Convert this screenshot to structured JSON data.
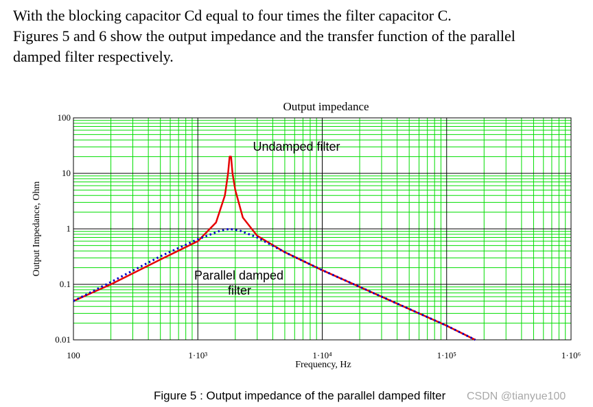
{
  "paragraphs": [
    {
      "lines": [
        "With the blocking capacitor Cd equal to four times the filter capacitor C."
      ]
    },
    {
      "lines": [
        "Figures 5 and 6 show the output impedance and the transfer function of the parallel",
        "damped filter respectively."
      ]
    }
  ],
  "chart_data": {
    "type": "line",
    "title": "Output impedance",
    "x_label": "Frequency, Hz",
    "y_label": "Output Impedance, Ohm",
    "xscale": "log",
    "yscale": "log",
    "grid": true,
    "minor_grid": true,
    "xlim": [
      100,
      1000000
    ],
    "xticks": [
      100,
      {
        "value": 1000,
        "label": "1·10³"
      },
      {
        "value": 10000,
        "label": "1·10⁴"
      },
      {
        "value": 100000,
        "label": "1·10⁵"
      },
      {
        "value": 1000000,
        "label": "1·10⁶"
      }
    ],
    "ylim": [
      0.01,
      100
    ],
    "yticks": [
      0.01,
      0.1,
      1,
      10,
      100
    ],
    "series": [
      {
        "name": "Undamped filter",
        "color": "#e60000",
        "style": "solid",
        "x": [
          100,
          200,
          500,
          1000,
          1400,
          1650,
          1750,
          1800,
          1850,
          1900,
          2000,
          2300,
          3000,
          5000,
          10000,
          30000,
          100000,
          170000
        ],
        "values": [
          0.05,
          0.1,
          0.28,
          0.6,
          1.3,
          4,
          10,
          20,
          20,
          10,
          5,
          1.6,
          0.75,
          0.38,
          0.18,
          0.06,
          0.018,
          0.01
        ]
      },
      {
        "name": "Parallel damped filter",
        "color": "#0000cc",
        "style": "dotted",
        "x": [
          100,
          200,
          500,
          1000,
          1500,
          1800,
          2200,
          3000,
          5000,
          10000,
          30000,
          100000,
          170000
        ],
        "values": [
          0.05,
          0.11,
          0.32,
          0.65,
          0.92,
          1.0,
          0.92,
          0.7,
          0.38,
          0.18,
          0.06,
          0.018,
          0.01
        ]
      }
    ],
    "annotations": [
      "Undamped filter",
      [
        "Parallel damped",
        "filter"
      ]
    ]
  },
  "caption": "Figure 5 : Output impedance of the parallel damped filter",
  "watermark": "CSDN @tianyue100"
}
